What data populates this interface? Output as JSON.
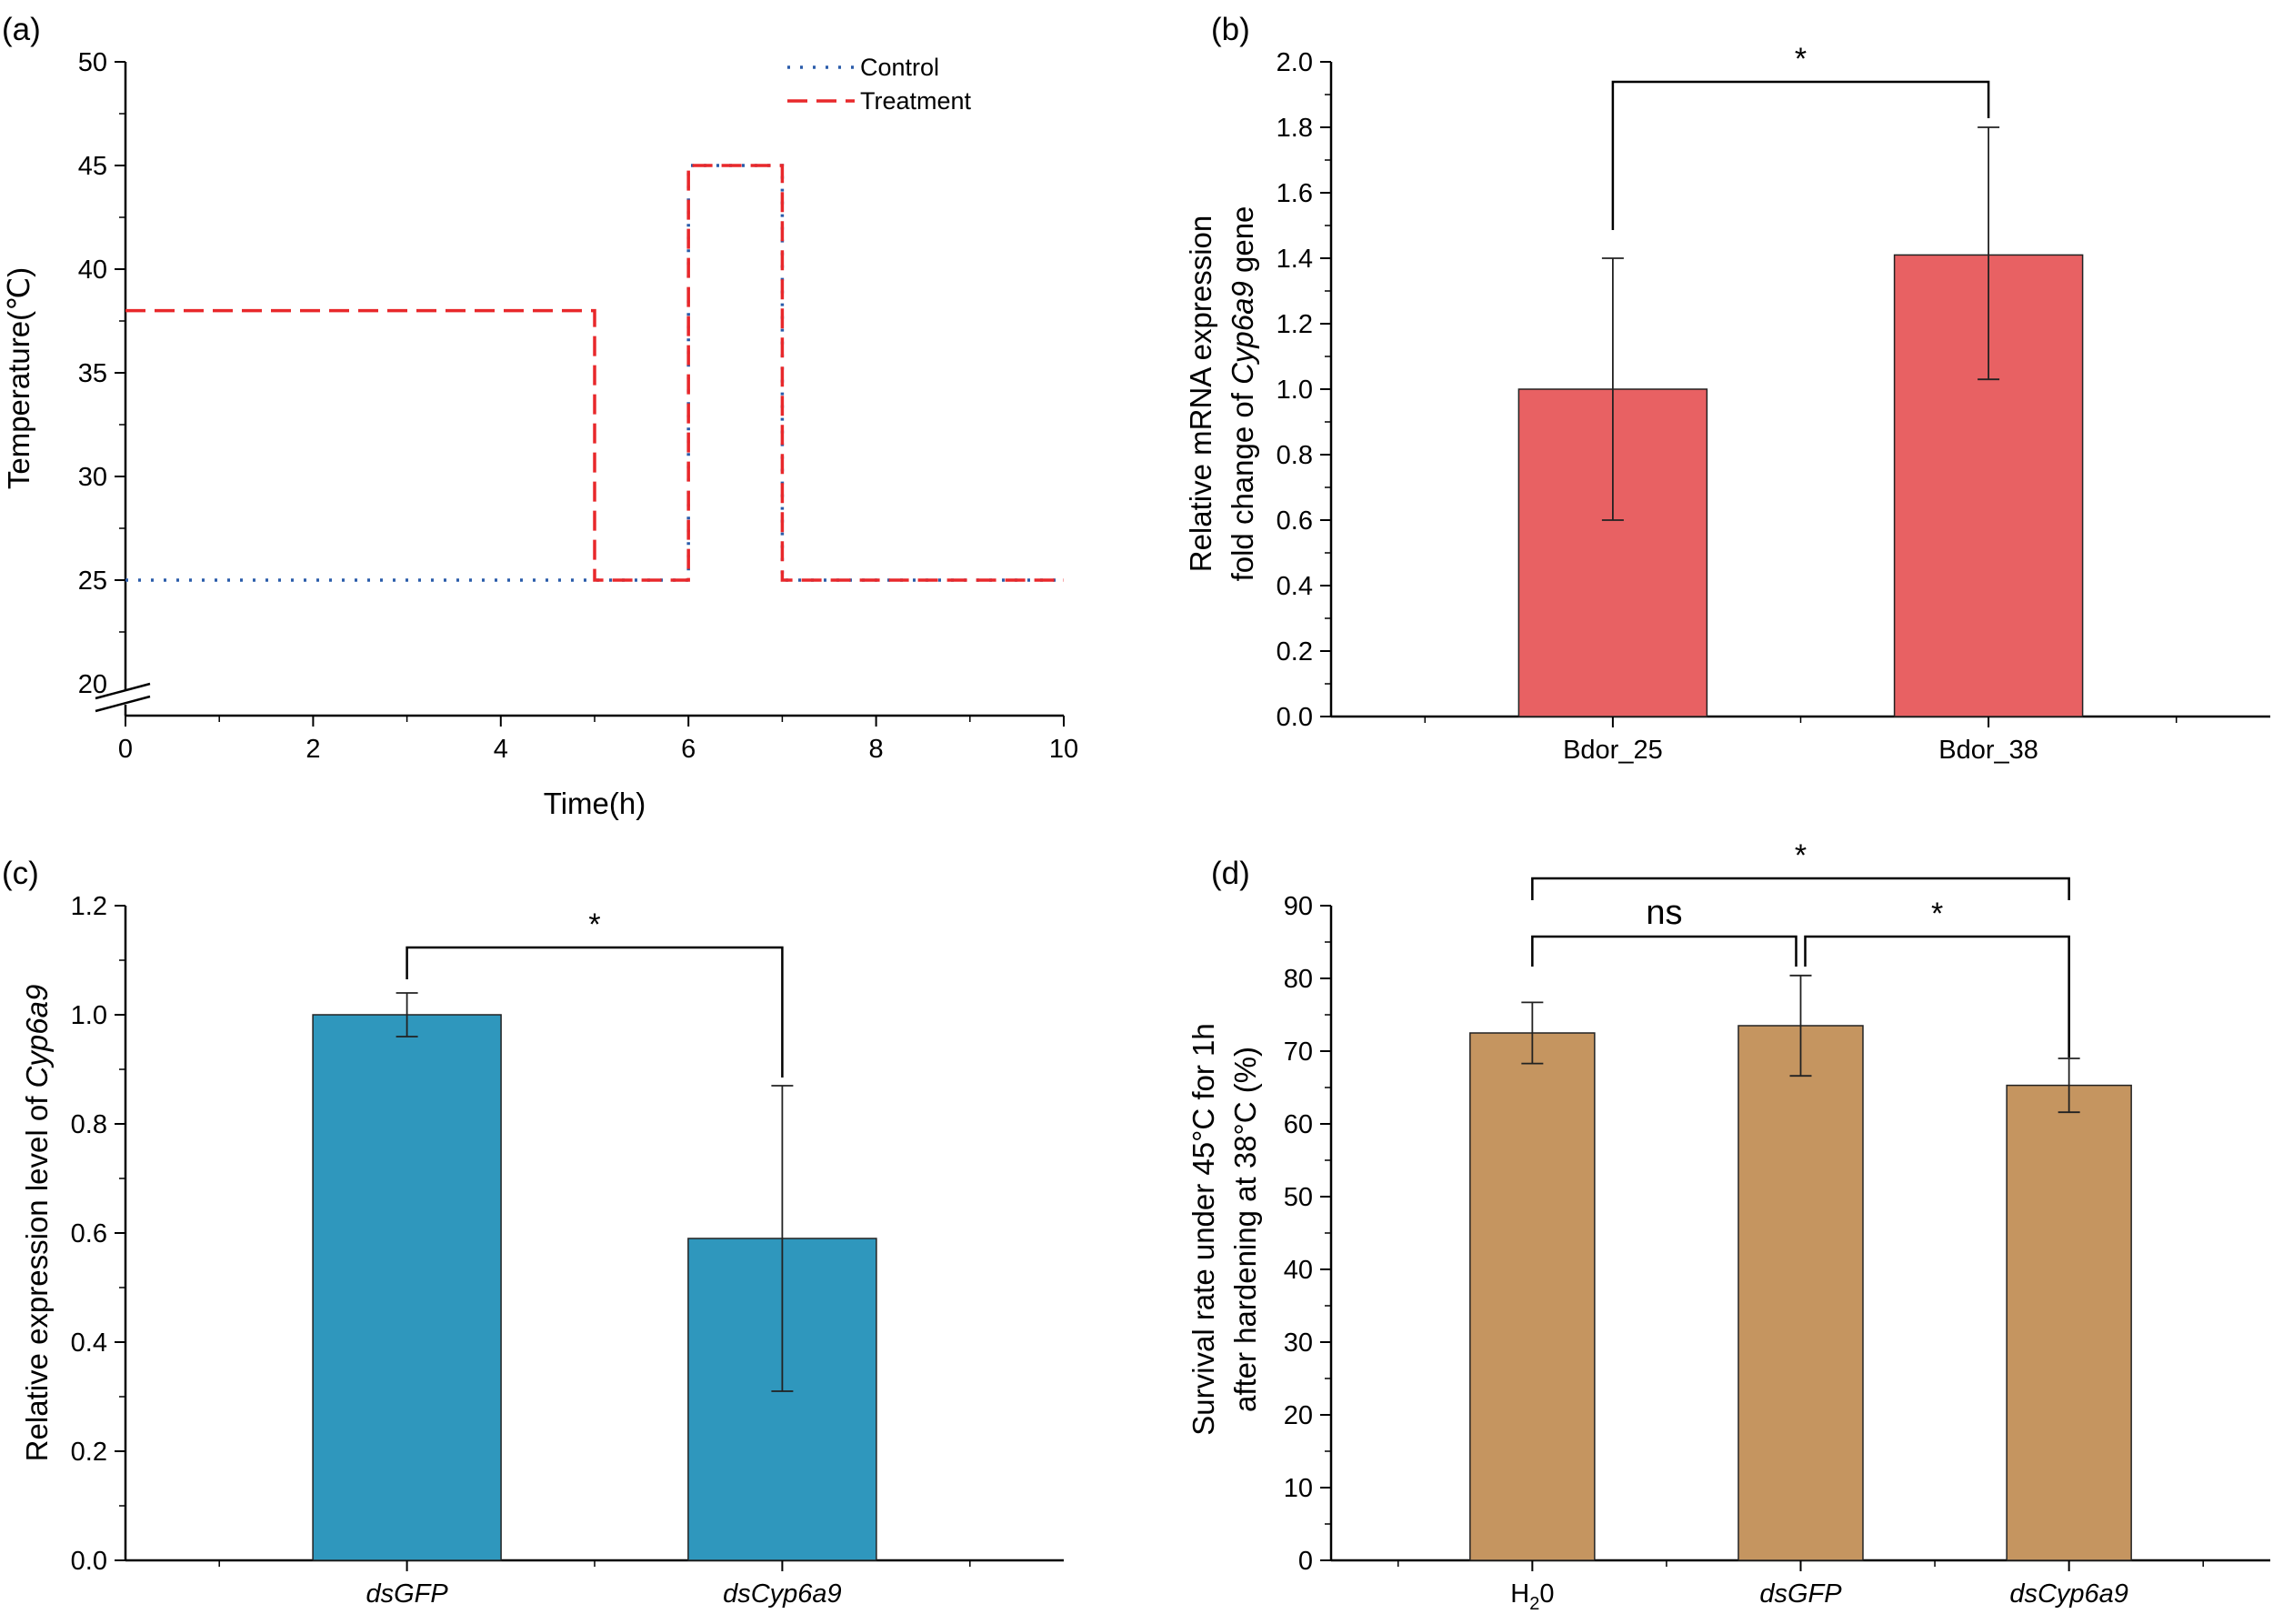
{
  "panels": {
    "a": {
      "label": "(a)",
      "xlabel": "Time(h)",
      "ylabel": "Temperature(℃)"
    },
    "b": {
      "label": "(b)",
      "ylabel_line1": "Relative mRNA expression",
      "ylabel_line2_pre": "fold change of ",
      "ylabel_line2_ital": "Cyp6a9",
      "ylabel_line2_post": " gene"
    },
    "c": {
      "label": "(c)",
      "ylabel_pre": "Relative expression level of ",
      "ylabel_ital": "Cyp6a9"
    },
    "d": {
      "label": "(d)",
      "ylabel_line1": "Survival rate under 45°C for 1h",
      "ylabel_line2": "after hardening at 38°C (%)",
      "h2o_main": "H",
      "h2o_sub": "2",
      "h2o_tail": "0"
    }
  },
  "colors": {
    "control": "#2a5caa",
    "treatment": "#e8282b",
    "bar_b": "#e86163",
    "bar_c": "#2f97bd",
    "bar_d": "#c59560"
  },
  "chart_data": [
    {
      "id": "a",
      "type": "line",
      "xlabel": "Time(h)",
      "ylabel": "Temperature(℃)",
      "xlim": [
        0,
        10
      ],
      "ylim": [
        20,
        50
      ],
      "y_axis_break": true,
      "xticks": [
        0,
        2,
        4,
        6,
        8,
        10
      ],
      "yticks": [
        20,
        25,
        30,
        35,
        40,
        45,
        50
      ],
      "legend_position": "top-right",
      "series": [
        {
          "name": "Control",
          "style": "dotted",
          "x": [
            0,
            6,
            6,
            7,
            7,
            10
          ],
          "y": [
            25,
            25,
            45,
            45,
            25,
            25
          ]
        },
        {
          "name": "Treatment",
          "style": "dashed",
          "x": [
            0,
            5,
            5,
            6,
            6,
            7,
            7,
            10
          ],
          "y": [
            38,
            38,
            25,
            25,
            45,
            45,
            25,
            25
          ]
        }
      ]
    },
    {
      "id": "b",
      "type": "bar",
      "categories": [
        "Bdor_25",
        "Bdor_38"
      ],
      "values": [
        1.0,
        1.41
      ],
      "error_low": [
        0.6,
        1.03
      ],
      "error_high": [
        1.4,
        1.8
      ],
      "ylim": [
        0,
        2.0
      ],
      "yticks": [
        0.0,
        0.2,
        0.4,
        0.6,
        0.8,
        1.0,
        1.2,
        1.4,
        1.6,
        1.8,
        2.0
      ],
      "annotations": [
        {
          "from": 0,
          "to": 1,
          "text": "*"
        }
      ]
    },
    {
      "id": "c",
      "type": "bar",
      "categories": [
        "dsGFP",
        "dsCyp6a9"
      ],
      "values": [
        1.0,
        0.59
      ],
      "error_low": [
        0.96,
        0.31
      ],
      "error_high": [
        1.04,
        0.87
      ],
      "ylim": [
        0,
        1.2
      ],
      "yticks": [
        0.0,
        0.2,
        0.4,
        0.6,
        0.8,
        1.0,
        1.2
      ],
      "annotations": [
        {
          "from": 0,
          "to": 1,
          "text": "*"
        }
      ]
    },
    {
      "id": "d",
      "type": "bar",
      "categories": [
        "H20",
        "dsGFP",
        "dsCyp6a9"
      ],
      "values": [
        72.5,
        73.5,
        65.3
      ],
      "error_low": [
        68.3,
        66.6,
        61.6
      ],
      "error_high": [
        76.7,
        80.4,
        69.0
      ],
      "ylim": [
        0,
        90
      ],
      "yticks": [
        0,
        10,
        20,
        30,
        40,
        50,
        60,
        70,
        80,
        90
      ],
      "annotations": [
        {
          "from": 0,
          "to": 2,
          "text": "*"
        },
        {
          "from": 0,
          "to": 1,
          "text": "ns"
        },
        {
          "from": 1,
          "to": 2,
          "text": "*"
        }
      ]
    }
  ]
}
